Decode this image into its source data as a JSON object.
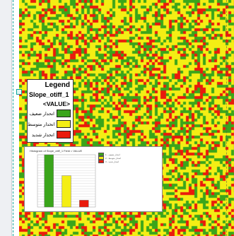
{
  "colors": {
    "green": "#3aa51b",
    "yellow": "#f4ee14",
    "red": "#ea1a0c",
    "map_pattern": [
      "yellow",
      "yellow",
      "green",
      "yellow",
      "red",
      "yellow",
      "green",
      "yellow",
      "red",
      "green",
      "yellow",
      "red",
      "yellow",
      "green",
      "yellow",
      "green"
    ]
  },
  "legend": {
    "title": "Legend",
    "layer": "Slope_otiff_1",
    "field": "<VALUE>",
    "items": [
      {
        "label": "انحدار ضعيف",
        "color": "#3aa51b"
      },
      {
        "label": "انحدار متوسط",
        "color": "#f4ee14"
      },
      {
        "label": "انحدار شديد",
        "color": "#ea1a0c"
      }
    ]
  },
  "histogram": {
    "title": "Histogram of Slope_otiff_1 Field = VALUE",
    "legend_items": [
      {
        "label": "1 - انحدار ضعيف",
        "color": "#3aa51b"
      },
      {
        "label": "2 - انحدار متوسط",
        "color": "#f4ee14"
      },
      {
        "label": "3 - انحدار شديد",
        "color": "#ea1a0c"
      }
    ]
  },
  "chart_data": {
    "type": "bar",
    "title": "Histogram of Slope_otiff_1 Field = VALUE",
    "categories": [
      "1",
      "2",
      "3"
    ],
    "values": [
      100,
      60,
      13
    ],
    "colors": [
      "#3aa51b",
      "#f4ee14",
      "#ea1a0c"
    ],
    "ylim": [
      0,
      100
    ],
    "grid": true
  }
}
